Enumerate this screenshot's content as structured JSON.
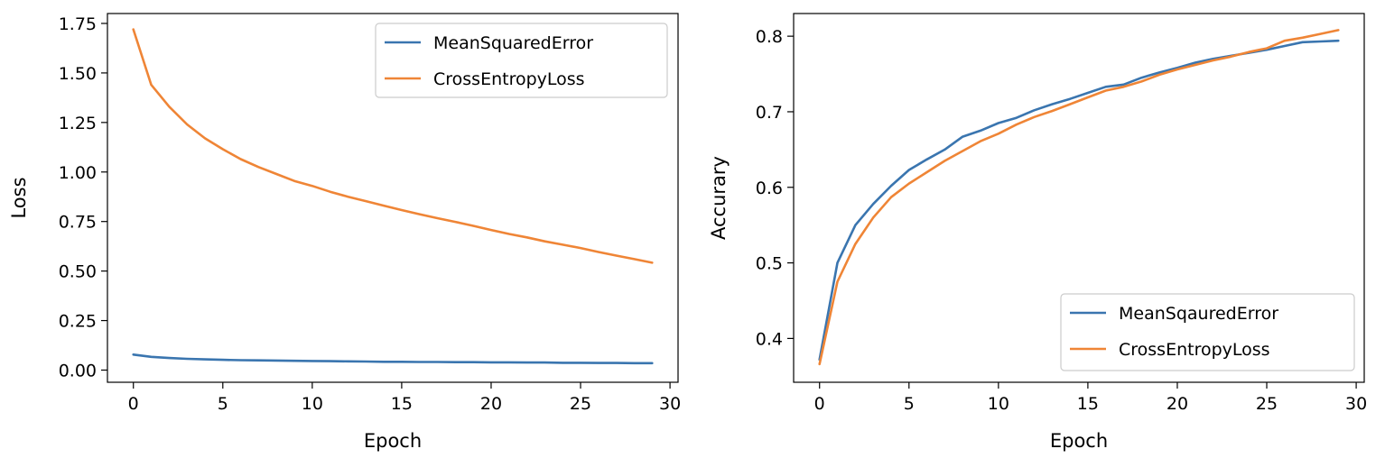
{
  "chart_data": [
    {
      "type": "line",
      "xlabel": "Epoch",
      "ylabel": "Loss",
      "xlim": [
        -1.45,
        30.45
      ],
      "ylim": [
        -0.0615,
        1.8
      ],
      "xticks": [
        0,
        5,
        10,
        15,
        20,
        25,
        30
      ],
      "xtick_labels": [
        "0",
        "5",
        "10",
        "15",
        "20",
        "25",
        "30"
      ],
      "yticks": [
        0.0,
        0.25,
        0.5,
        0.75,
        1.0,
        1.25,
        1.5,
        1.75
      ],
      "ytick_labels": [
        "0.00",
        "0.25",
        "0.50",
        "0.75",
        "1.00",
        "1.25",
        "1.50",
        "1.75"
      ],
      "legend_position": "upper right",
      "x": [
        0,
        1,
        2,
        3,
        4,
        5,
        6,
        7,
        8,
        9,
        10,
        11,
        12,
        13,
        14,
        15,
        16,
        17,
        18,
        19,
        20,
        21,
        22,
        23,
        24,
        25,
        26,
        27,
        28,
        29
      ],
      "series": [
        {
          "name": "MeanSquaredError",
          "color": "#3a75af",
          "values": [
            0.078,
            0.067,
            0.061,
            0.057,
            0.054,
            0.052,
            0.05,
            0.049,
            0.048,
            0.047,
            0.046,
            0.045,
            0.044,
            0.043,
            0.042,
            0.042,
            0.041,
            0.041,
            0.04,
            0.04,
            0.039,
            0.039,
            0.038,
            0.038,
            0.037,
            0.037,
            0.036,
            0.036,
            0.035,
            0.035
          ]
        },
        {
          "name": "CrossEntropyLoss",
          "color": "#ef8536",
          "values": [
            1.72,
            1.44,
            1.33,
            1.24,
            1.17,
            1.115,
            1.065,
            1.025,
            0.99,
            0.955,
            0.93,
            0.9,
            0.875,
            0.853,
            0.83,
            0.808,
            0.787,
            0.767,
            0.748,
            0.728,
            0.707,
            0.687,
            0.67,
            0.65,
            0.633,
            0.616,
            0.596,
            0.578,
            0.56,
            0.542
          ]
        }
      ]
    },
    {
      "type": "line",
      "xlabel": "Epoch",
      "ylabel": "Accurary",
      "xlim": [
        -1.45,
        30.45
      ],
      "ylim": [
        0.342,
        0.83
      ],
      "xticks": [
        0,
        5,
        10,
        15,
        20,
        25,
        30
      ],
      "xtick_labels": [
        "0",
        "5",
        "10",
        "15",
        "20",
        "25",
        "30"
      ],
      "yticks": [
        0.4,
        0.5,
        0.6,
        0.7,
        0.8
      ],
      "ytick_labels": [
        "0.4",
        "0.5",
        "0.6",
        "0.7",
        "0.8"
      ],
      "legend_position": "lower right",
      "x": [
        0,
        1,
        2,
        3,
        4,
        5,
        6,
        7,
        8,
        9,
        10,
        11,
        12,
        13,
        14,
        15,
        16,
        17,
        18,
        19,
        20,
        21,
        22,
        23,
        24,
        25,
        26,
        27,
        28,
        29
      ],
      "series": [
        {
          "name": "MeanSqauredError",
          "color": "#3a75af",
          "values": [
            0.372,
            0.5,
            0.55,
            0.578,
            0.602,
            0.623,
            0.637,
            0.65,
            0.667,
            0.675,
            0.685,
            0.692,
            0.702,
            0.71,
            0.717,
            0.725,
            0.733,
            0.736,
            0.745,
            0.752,
            0.758,
            0.765,
            0.77,
            0.774,
            0.778,
            0.782,
            0.787,
            0.792,
            0.793,
            0.794
          ]
        },
        {
          "name": "CrossEntropyLoss",
          "color": "#ef8536",
          "values": [
            0.366,
            0.475,
            0.525,
            0.56,
            0.587,
            0.605,
            0.62,
            0.635,
            0.648,
            0.661,
            0.671,
            0.683,
            0.693,
            0.701,
            0.71,
            0.719,
            0.728,
            0.733,
            0.74,
            0.749,
            0.756,
            0.762,
            0.768,
            0.773,
            0.779,
            0.784,
            0.794,
            0.798,
            0.803,
            0.808
          ]
        }
      ]
    }
  ]
}
